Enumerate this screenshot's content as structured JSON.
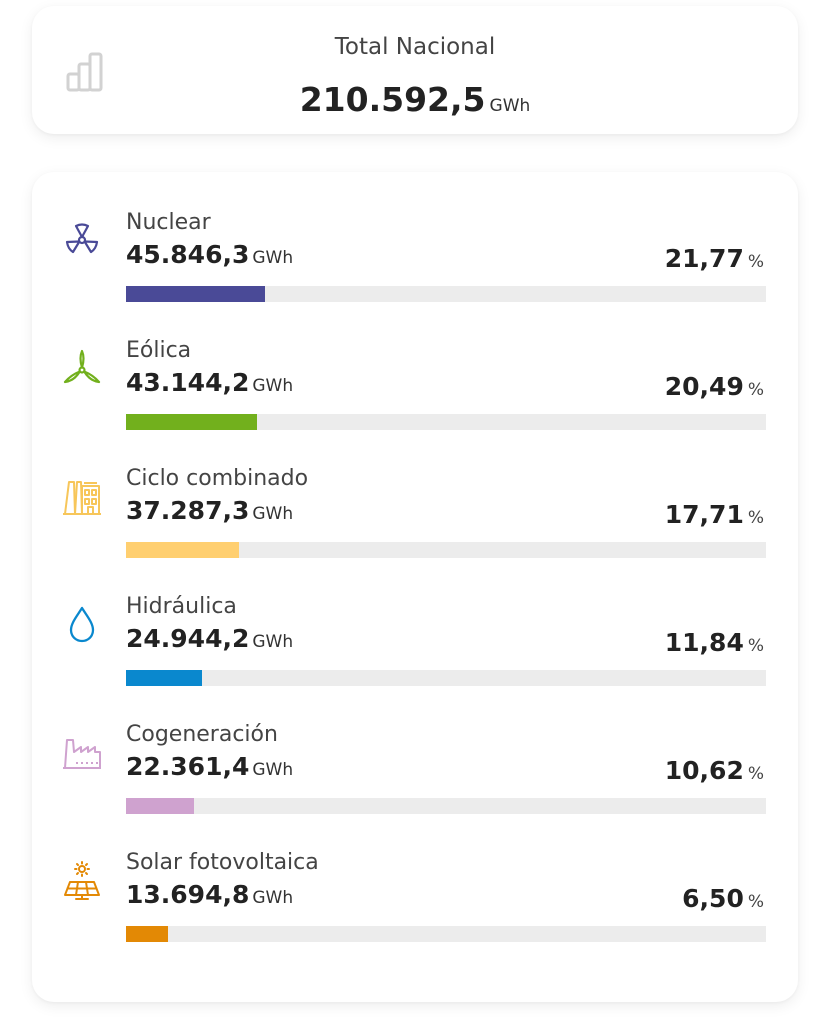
{
  "total": {
    "label": "Total Nacional",
    "value": "210.592,5",
    "unit": "GWh",
    "icon": "bar-chart-icon"
  },
  "items": [
    {
      "label": "Nuclear",
      "value": "45.846,3",
      "unit": "GWh",
      "percent": "21,77",
      "percent_symbol": "%",
      "share": 21.77,
      "color": "#4a4a97",
      "icon": "nuclear-icon"
    },
    {
      "label": "Eólica",
      "value": "43.144,2",
      "unit": "GWh",
      "percent": "20,49",
      "percent_symbol": "%",
      "share": 20.49,
      "color": "#72b01d",
      "icon": "wind-turbine-icon"
    },
    {
      "label": "Ciclo combinado",
      "value": "37.287,3",
      "unit": "GWh",
      "percent": "17,71",
      "percent_symbol": "%",
      "share": 17.71,
      "color": "#ffcf70",
      "icon": "power-plant-icon"
    },
    {
      "label": "Hidráulica",
      "value": "24.944,2",
      "unit": "GWh",
      "percent": "11,84",
      "percent_symbol": "%",
      "share": 11.84,
      "color": "#0a88ce",
      "icon": "water-drop-icon"
    },
    {
      "label": "Cogeneración",
      "value": "22.361,4",
      "unit": "GWh",
      "percent": "10,62",
      "percent_symbol": "%",
      "share": 10.62,
      "color": "#cfa2cf",
      "icon": "factory-icon"
    },
    {
      "label": "Solar fotovoltaica",
      "value": "13.694,8",
      "unit": "GWh",
      "percent": "6,50",
      "percent_symbol": "%",
      "share": 6.5,
      "color": "#e38905",
      "icon": "solar-panel-icon"
    }
  ]
}
